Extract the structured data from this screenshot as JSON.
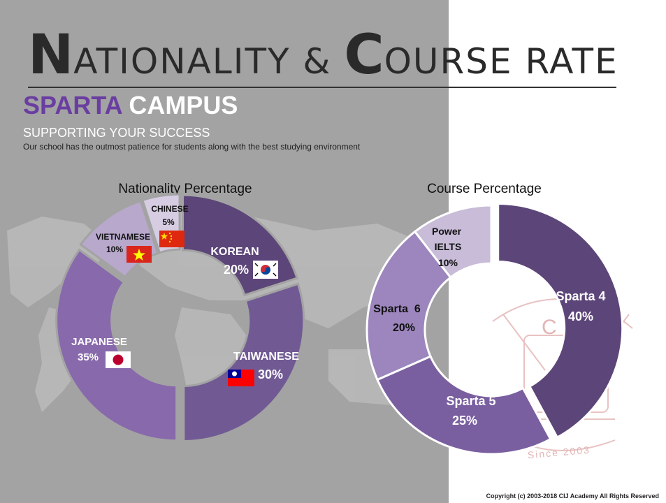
{
  "header": {
    "title_cap_1": "N",
    "title_rest_1": "ATIONALITY & ",
    "title_cap_2": "C",
    "title_rest_2": "OURSE RATE",
    "subtitle_part1": "SPARTA",
    "subtitle_part2": "CAMPUS",
    "tagline": "SUPPORTING YOUR SUCCESS",
    "description": "Our school has the outmost patience for students along with the best studying environment"
  },
  "colors": {
    "left_panel": "#a3a3a3",
    "accent_purple": "#6a3ea1",
    "slice_dark": "#5c4578",
    "slice_mid": "#715a94",
    "slice_light": "#8869ab",
    "slice_lighter": "#a48fc0",
    "slice_lightest": "#c8bcd8"
  },
  "chart_data": [
    {
      "type": "pie",
      "title": "Nationality Percentage",
      "labels": [
        "KOREAN",
        "TAIWANESE",
        "JAPANESE",
        "VIETNAMESE",
        "CHINESE"
      ],
      "values": [
        20,
        30,
        35,
        10,
        5
      ],
      "value_labels": [
        "20%",
        "30%",
        "35%",
        "10%",
        "5%"
      ],
      "colors": [
        "#5c4578",
        "#715a94",
        "#8869ab",
        "#b8a8cc",
        "#d6cde3"
      ],
      "flag_icons": [
        "south-korea-flag-icon",
        "taiwan-flag-icon",
        "japan-flag-icon",
        "vietnam-flag-icon",
        "china-flag-icon"
      ]
    },
    {
      "type": "pie",
      "title": "Course Percentage",
      "labels": [
        "Sparta 4",
        "Sparta 5",
        "Sparta  6",
        "Power IELTS"
      ],
      "values": [
        40,
        25,
        20,
        10
      ],
      "value_labels": [
        "40%",
        "25%",
        "20%",
        "10%"
      ],
      "colors": [
        "#5c4578",
        "#7a5fa0",
        "#9c86bd",
        "#c8bcd8"
      ]
    }
  ],
  "watermark": {
    "letter": "C",
    "since_text": "Since 2003"
  },
  "footer": {
    "copyright": "Copyright (c) 2003-2018 CIJ Academy All Rights Reserved"
  }
}
